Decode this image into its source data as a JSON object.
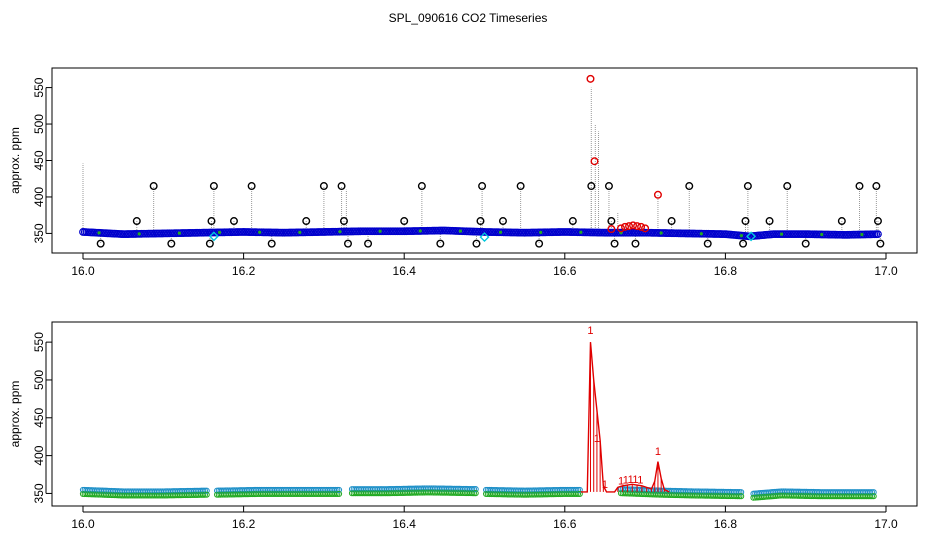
{
  "title": "SPL_090616  CO2 Timeseries",
  "chart_data": [
    {
      "type": "scatter",
      "ylabel": "approx. ppm",
      "xlabel": "",
      "xlim": [
        16.0,
        17.0
      ],
      "ylim": [
        330,
        570
      ],
      "xticks": [
        16.0,
        16.2,
        16.4,
        16.6,
        16.8,
        17.0
      ],
      "xtick_labels": [
        "16.0",
        "16.2",
        "16.4",
        "16.6",
        "16.8",
        "17.0"
      ],
      "yticks": [
        350,
        400,
        450,
        500,
        550
      ],
      "ytick_labels": [
        "350",
        "400",
        "450",
        "500",
        "550"
      ],
      "baseline": [
        [
          16.0,
          352
        ],
        [
          16.05,
          349
        ],
        [
          16.1,
          350
        ],
        [
          16.15,
          351
        ],
        [
          16.2,
          352
        ],
        [
          16.25,
          351
        ],
        [
          16.3,
          352
        ],
        [
          16.35,
          353
        ],
        [
          16.4,
          353
        ],
        [
          16.45,
          354
        ],
        [
          16.5,
          352
        ],
        [
          16.55,
          351
        ],
        [
          16.6,
          352
        ],
        [
          16.65,
          351
        ],
        [
          16.7,
          351
        ],
        [
          16.75,
          350
        ],
        [
          16.8,
          349
        ],
        [
          16.83,
          346
        ],
        [
          16.86,
          349
        ],
        [
          16.9,
          349
        ],
        [
          16.95,
          348
        ],
        [
          16.99,
          349
        ]
      ],
      "outliers_black": [
        [
          16.067,
          367
        ],
        [
          16.088,
          415
        ],
        [
          16.022,
          336
        ],
        [
          16.11,
          336
        ],
        [
          16.158,
          336
        ],
        [
          16.16,
          367
        ],
        [
          16.163,
          415
        ],
        [
          16.188,
          367
        ],
        [
          16.21,
          415
        ],
        [
          16.235,
          336
        ],
        [
          16.278,
          367
        ],
        [
          16.3,
          415
        ],
        [
          16.322,
          415
        ],
        [
          16.325,
          367
        ],
        [
          16.33,
          336
        ],
        [
          16.355,
          336
        ],
        [
          16.4,
          367
        ],
        [
          16.422,
          415
        ],
        [
          16.445,
          336
        ],
        [
          16.49,
          336
        ],
        [
          16.495,
          367
        ],
        [
          16.497,
          415
        ],
        [
          16.523,
          367
        ],
        [
          16.545,
          415
        ],
        [
          16.568,
          336
        ],
        [
          16.61,
          367
        ],
        [
          16.633,
          415
        ],
        [
          16.655,
          415
        ],
        [
          16.658,
          367
        ],
        [
          16.662,
          336
        ],
        [
          16.688,
          336
        ],
        [
          16.733,
          367
        ],
        [
          16.755,
          415
        ],
        [
          16.778,
          336
        ],
        [
          16.822,
          336
        ],
        [
          16.825,
          367
        ],
        [
          16.828,
          415
        ],
        [
          16.855,
          367
        ],
        [
          16.877,
          415
        ],
        [
          16.9,
          336
        ],
        [
          16.945,
          367
        ],
        [
          16.967,
          415
        ],
        [
          16.988,
          415
        ],
        [
          16.99,
          367
        ],
        [
          16.993,
          336
        ]
      ],
      "outliers_red": [
        [
          16.632,
          562
        ],
        [
          16.637,
          449
        ],
        [
          16.658,
          356
        ],
        [
          16.67,
          357
        ],
        [
          16.675,
          359
        ],
        [
          16.68,
          360
        ],
        [
          16.685,
          361
        ],
        [
          16.69,
          360
        ],
        [
          16.695,
          359
        ],
        [
          16.7,
          357
        ],
        [
          16.716,
          403
        ]
      ],
      "outliers_cyan": [
        [
          16.163,
          346
        ],
        [
          16.5,
          345
        ],
        [
          16.832,
          346
        ]
      ],
      "spike_lines": [
        [
          16.0,
          446
        ],
        [
          16.328,
          410
        ],
        [
          16.633,
          550
        ],
        [
          16.638,
          500
        ],
        [
          16.642,
          490
        ],
        [
          16.666,
          378
        ],
        [
          16.716,
          403
        ]
      ]
    },
    {
      "type": "line",
      "ylabel": "approx. ppm",
      "xlabel": "",
      "xlim": [
        16.0,
        17.0
      ],
      "ylim": [
        340,
        570
      ],
      "xticks": [
        16.0,
        16.2,
        16.4,
        16.6,
        16.8,
        17.0
      ],
      "xtick_labels": [
        "16.0",
        "16.2",
        "16.4",
        "16.6",
        "16.8",
        "17.0"
      ],
      "yticks": [
        350,
        400,
        450,
        500,
        550
      ],
      "ytick_labels": [
        "350",
        "400",
        "450",
        "500",
        "550"
      ],
      "marker_label": "1",
      "segments": [
        [
          [
            16.0,
            352
          ],
          [
            16.05,
            350
          ],
          [
            16.1,
            350
          ],
          [
            16.155,
            351
          ]
        ],
        [
          [
            16.167,
            351
          ],
          [
            16.22,
            352
          ],
          [
            16.27,
            352
          ],
          [
            16.32,
            352
          ]
        ],
        [
          [
            16.335,
            353
          ],
          [
            16.38,
            353
          ],
          [
            16.43,
            354
          ],
          [
            16.49,
            353
          ]
        ],
        [
          [
            16.502,
            352
          ],
          [
            16.55,
            351
          ],
          [
            16.6,
            352
          ],
          [
            16.62,
            352
          ]
        ],
        [
          [
            16.67,
            353
          ],
          [
            16.72,
            351
          ],
          [
            16.76,
            350
          ],
          [
            16.82,
            349
          ]
        ],
        [
          [
            16.835,
            347
          ],
          [
            16.87,
            350
          ],
          [
            16.92,
            349
          ],
          [
            16.985,
            349
          ]
        ]
      ],
      "red_series": [
        [
          16.62,
          352
        ],
        [
          16.628,
          352
        ],
        [
          16.632,
          550
        ],
        [
          16.636,
          500
        ],
        [
          16.64,
          460
        ],
        [
          16.644,
          420
        ],
        [
          16.648,
          360
        ],
        [
          16.652,
          352
        ],
        [
          16.662,
          352
        ],
        [
          16.666,
          358
        ],
        [
          16.672,
          360
        ],
        [
          16.678,
          361
        ],
        [
          16.684,
          362
        ],
        [
          16.69,
          361
        ],
        [
          16.696,
          360
        ],
        [
          16.702,
          358
        ],
        [
          16.708,
          356
        ],
        [
          16.712,
          366
        ],
        [
          16.716,
          392
        ],
        [
          16.72,
          370
        ],
        [
          16.724,
          355
        ],
        [
          16.73,
          352
        ]
      ],
      "red_labels": [
        [
          16.632,
          561
        ],
        [
          16.64,
          418
        ],
        [
          16.65,
          357
        ],
        [
          16.67,
          362
        ],
        [
          16.676,
          363
        ],
        [
          16.682,
          364
        ],
        [
          16.688,
          364
        ],
        [
          16.694,
          363
        ],
        [
          16.716,
          401
        ]
      ]
    }
  ]
}
